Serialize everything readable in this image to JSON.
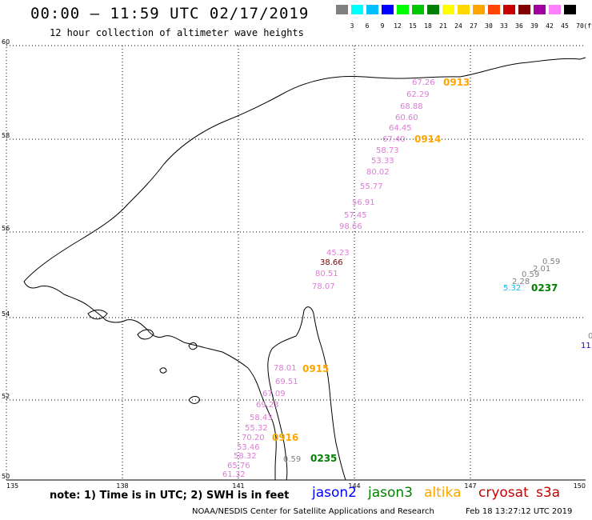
{
  "header": {
    "title": "00:00 – 11:59 UTC 02/17/2019",
    "subtitle": "12 hour collection of altimeter wave heights"
  },
  "legend": {
    "unit": "(ft)",
    "colors": [
      "#808080",
      "#00ffff",
      "#00bfff",
      "#0000ff",
      "#00ff00",
      "#00c800",
      "#008000",
      "#ffff00",
      "#ffd700",
      "#ffa500",
      "#ff4500",
      "#c80000",
      "#800000",
      "#a000a0",
      "#ff80ff",
      "#000000"
    ],
    "labels": [
      "3",
      "6",
      "9",
      "12",
      "15",
      "18",
      "21",
      "24",
      "27",
      "30",
      "33",
      "36",
      "39",
      "42",
      "45",
      "70"
    ]
  },
  "axes": {
    "lat_labels": [
      "60",
      "58",
      "56",
      "54",
      "52",
      "50"
    ],
    "lon_labels": [
      "135",
      "138",
      "141",
      "144",
      "147",
      "150"
    ]
  },
  "observations": [
    {
      "text": "67.26",
      "color": "#e07ad8"
    },
    {
      "text": "62.29",
      "color": "#e07ad8"
    },
    {
      "text": "68.88",
      "color": "#e07ad8"
    },
    {
      "text": "60.60",
      "color": "#e07ad8"
    },
    {
      "text": "64.45",
      "color": "#e07ad8"
    },
    {
      "text": "67.40",
      "color": "#e07ad8"
    },
    {
      "text": "58.73",
      "color": "#e07ad8"
    },
    {
      "text": "53.33",
      "color": "#e07ad8"
    },
    {
      "text": "80.02",
      "color": "#e07ad8"
    },
    {
      "text": "55.77",
      "color": "#e07ad8"
    },
    {
      "text": "56.91",
      "color": "#e07ad8"
    },
    {
      "text": "57.45",
      "color": "#e07ad8"
    },
    {
      "text": "98.66",
      "color": "#e07ad8"
    },
    {
      "text": "45.23",
      "color": "#e07ad8"
    },
    {
      "text": "38.66",
      "color": "#800000"
    },
    {
      "text": "80.51",
      "color": "#e07ad8"
    },
    {
      "text": "78.07",
      "color": "#e07ad8"
    },
    {
      "text": "0.59",
      "color": "#808080"
    },
    {
      "text": "2.01",
      "color": "#808080"
    },
    {
      "text": "0.59",
      "color": "#808080"
    },
    {
      "text": "2.28",
      "color": "#808080"
    },
    {
      "text": "5.32",
      "color": "#00bfff"
    },
    {
      "text": "0",
      "color": "#808080"
    },
    {
      "text": "11.",
      "color": "#0000ff"
    },
    {
      "text": "78.01",
      "color": "#e07ad8"
    },
    {
      "text": "69.51",
      "color": "#e07ad8"
    },
    {
      "text": "67.09",
      "color": "#e07ad8"
    },
    {
      "text": "69.23",
      "color": "#e07ad8"
    },
    {
      "text": "58.43",
      "color": "#e07ad8"
    },
    {
      "text": "55.32",
      "color": "#e07ad8"
    },
    {
      "text": "70.20",
      "color": "#e07ad8"
    },
    {
      "text": "53.46",
      "color": "#e07ad8"
    },
    {
      "text": "58.32",
      "color": "#e07ad8"
    },
    {
      "text": "65.76",
      "color": "#e07ad8"
    },
    {
      "text": "61.32",
      "color": "#e07ad8"
    },
    {
      "text": "0.59",
      "color": "#808080"
    }
  ],
  "pass_times": [
    {
      "text": "0913",
      "color": "#ffa500"
    },
    {
      "text": "0914",
      "color": "#ffa500"
    },
    {
      "text": "0915",
      "color": "#ffa500"
    },
    {
      "text": "0916",
      "color": "#ffa500"
    },
    {
      "text": "0237",
      "color": "#008000"
    },
    {
      "text": "0235",
      "color": "#008000"
    }
  ],
  "footer": {
    "note": "note: 1) Time is in UTC; 2) SWH is in feet",
    "satellites": [
      {
        "name": "jason2",
        "color": "#0000ff"
      },
      {
        "name": "jason3",
        "color": "#008000"
      },
      {
        "name": "altika",
        "color": "#ffa500"
      },
      {
        "name": "cryosat",
        "color": "#c80000"
      },
      {
        "name": "s3a",
        "color": "#c80000"
      }
    ],
    "credit": "NOAA/NESDIS Center for Satellite Applications and Research",
    "timestamp": "Feb 18 13:27:12 UTC 2019"
  }
}
